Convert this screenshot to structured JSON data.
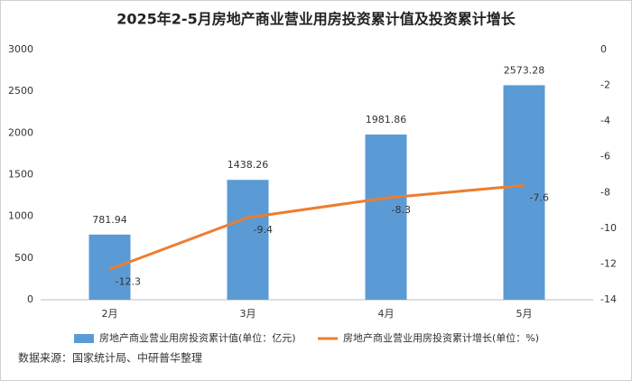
{
  "chart_data": {
    "type": "combo",
    "title": "2025年2-5月房地产商业营业用房投资累计值及投资累计增长",
    "categories": [
      "2月",
      "3月",
      "4月",
      "5月"
    ],
    "series": [
      {
        "name": "房地产商业营业用房投资累计值(单位：亿元)",
        "type": "bar",
        "color": "#5b9bd5",
        "values": [
          781.94,
          1438.26,
          1981.86,
          2573.28
        ]
      },
      {
        "name": "房地产商业营业用房投资累计增长(单位：%)",
        "type": "line",
        "axis": "y2",
        "color": "#ed7d31",
        "values": [
          -12.3,
          -9.4,
          -8.3,
          -7.6
        ]
      }
    ],
    "ylim": [
      0,
      3000
    ],
    "yticks": [
      0,
      500,
      1000,
      1500,
      2000,
      2500,
      3000
    ],
    "y2lim": [
      -14,
      0
    ],
    "y2ticks": [
      0,
      -2,
      -4,
      -6,
      -8,
      -10,
      -12,
      -14
    ],
    "grid": false,
    "source": "数据来源：国家统计局、中研普华整理"
  }
}
